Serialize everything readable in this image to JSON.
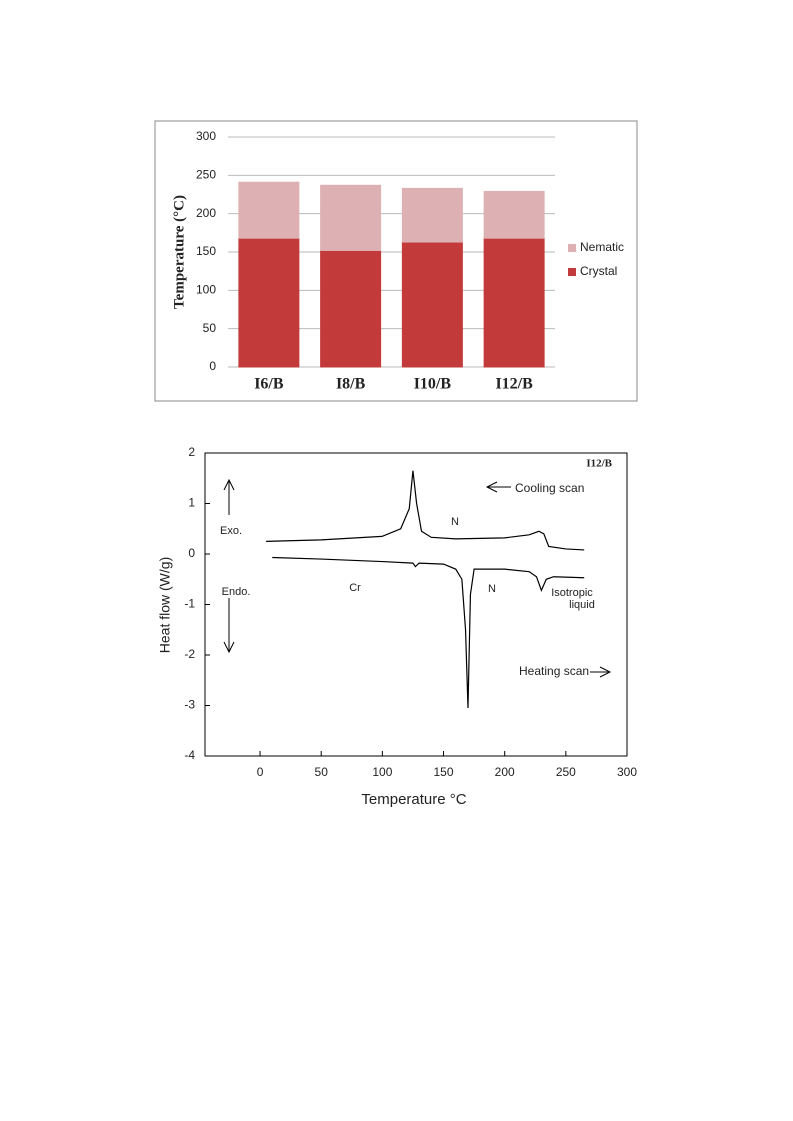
{
  "chart_data": [
    {
      "type": "stacked-bar",
      "y_label": "Temperature (°C)",
      "categories": [
        "I6/B",
        "I8/B",
        "I10/B",
        "I12/B"
      ],
      "series": [
        {
          "name": "Crystal",
          "color": "#c33a3a",
          "values": [
            168,
            152,
            163,
            168
          ]
        },
        {
          "name": "Nematic",
          "color": "#ddb1b3",
          "values": [
            73,
            85,
            70,
            61
          ]
        }
      ],
      "ylim": [
        0,
        300
      ],
      "yticks": [
        0,
        50,
        100,
        150,
        200,
        250,
        300
      ],
      "grid": true,
      "legend": "right"
    },
    {
      "type": "line",
      "x_label": "Temperature °C",
      "y_label": "Heat flow (W/g)",
      "series": [
        {
          "name": "Cooling scan",
          "color": "#000000",
          "x": [
            5,
            50,
            100,
            115,
            122,
            125,
            128,
            132,
            140,
            160,
            200,
            220,
            228,
            232,
            236,
            250,
            265
          ],
          "values": [
            0.25,
            0.28,
            0.35,
            0.5,
            0.9,
            1.65,
            1.0,
            0.45,
            0.33,
            0.3,
            0.32,
            0.38,
            0.45,
            0.4,
            0.15,
            0.1,
            0.08
          ]
        },
        {
          "name": "Heating scan",
          "color": "#000000",
          "x": [
            10,
            50,
            100,
            125,
            127,
            130,
            150,
            160,
            165,
            168,
            170,
            172,
            175,
            200,
            220,
            226,
            230,
            234,
            240,
            265
          ],
          "values": [
            -0.07,
            -0.1,
            -0.15,
            -0.18,
            -0.25,
            -0.18,
            -0.2,
            -0.3,
            -0.5,
            -1.5,
            -3.05,
            -0.8,
            -0.3,
            -0.3,
            -0.35,
            -0.45,
            -0.72,
            -0.5,
            -0.45,
            -0.47
          ]
        }
      ],
      "annotations": [
        "I12/B",
        "N",
        "Exo.",
        "Cr",
        "N",
        "Endo.",
        "Isotropic",
        "liquid"
      ],
      "xlim": [
        -45,
        300
      ],
      "xticks": [
        0,
        50,
        100,
        150,
        200,
        250,
        300
      ],
      "ylim": [
        -4,
        2
      ],
      "yticks": [
        -4,
        -3,
        -2,
        -1,
        0,
        1,
        2
      ]
    }
  ]
}
